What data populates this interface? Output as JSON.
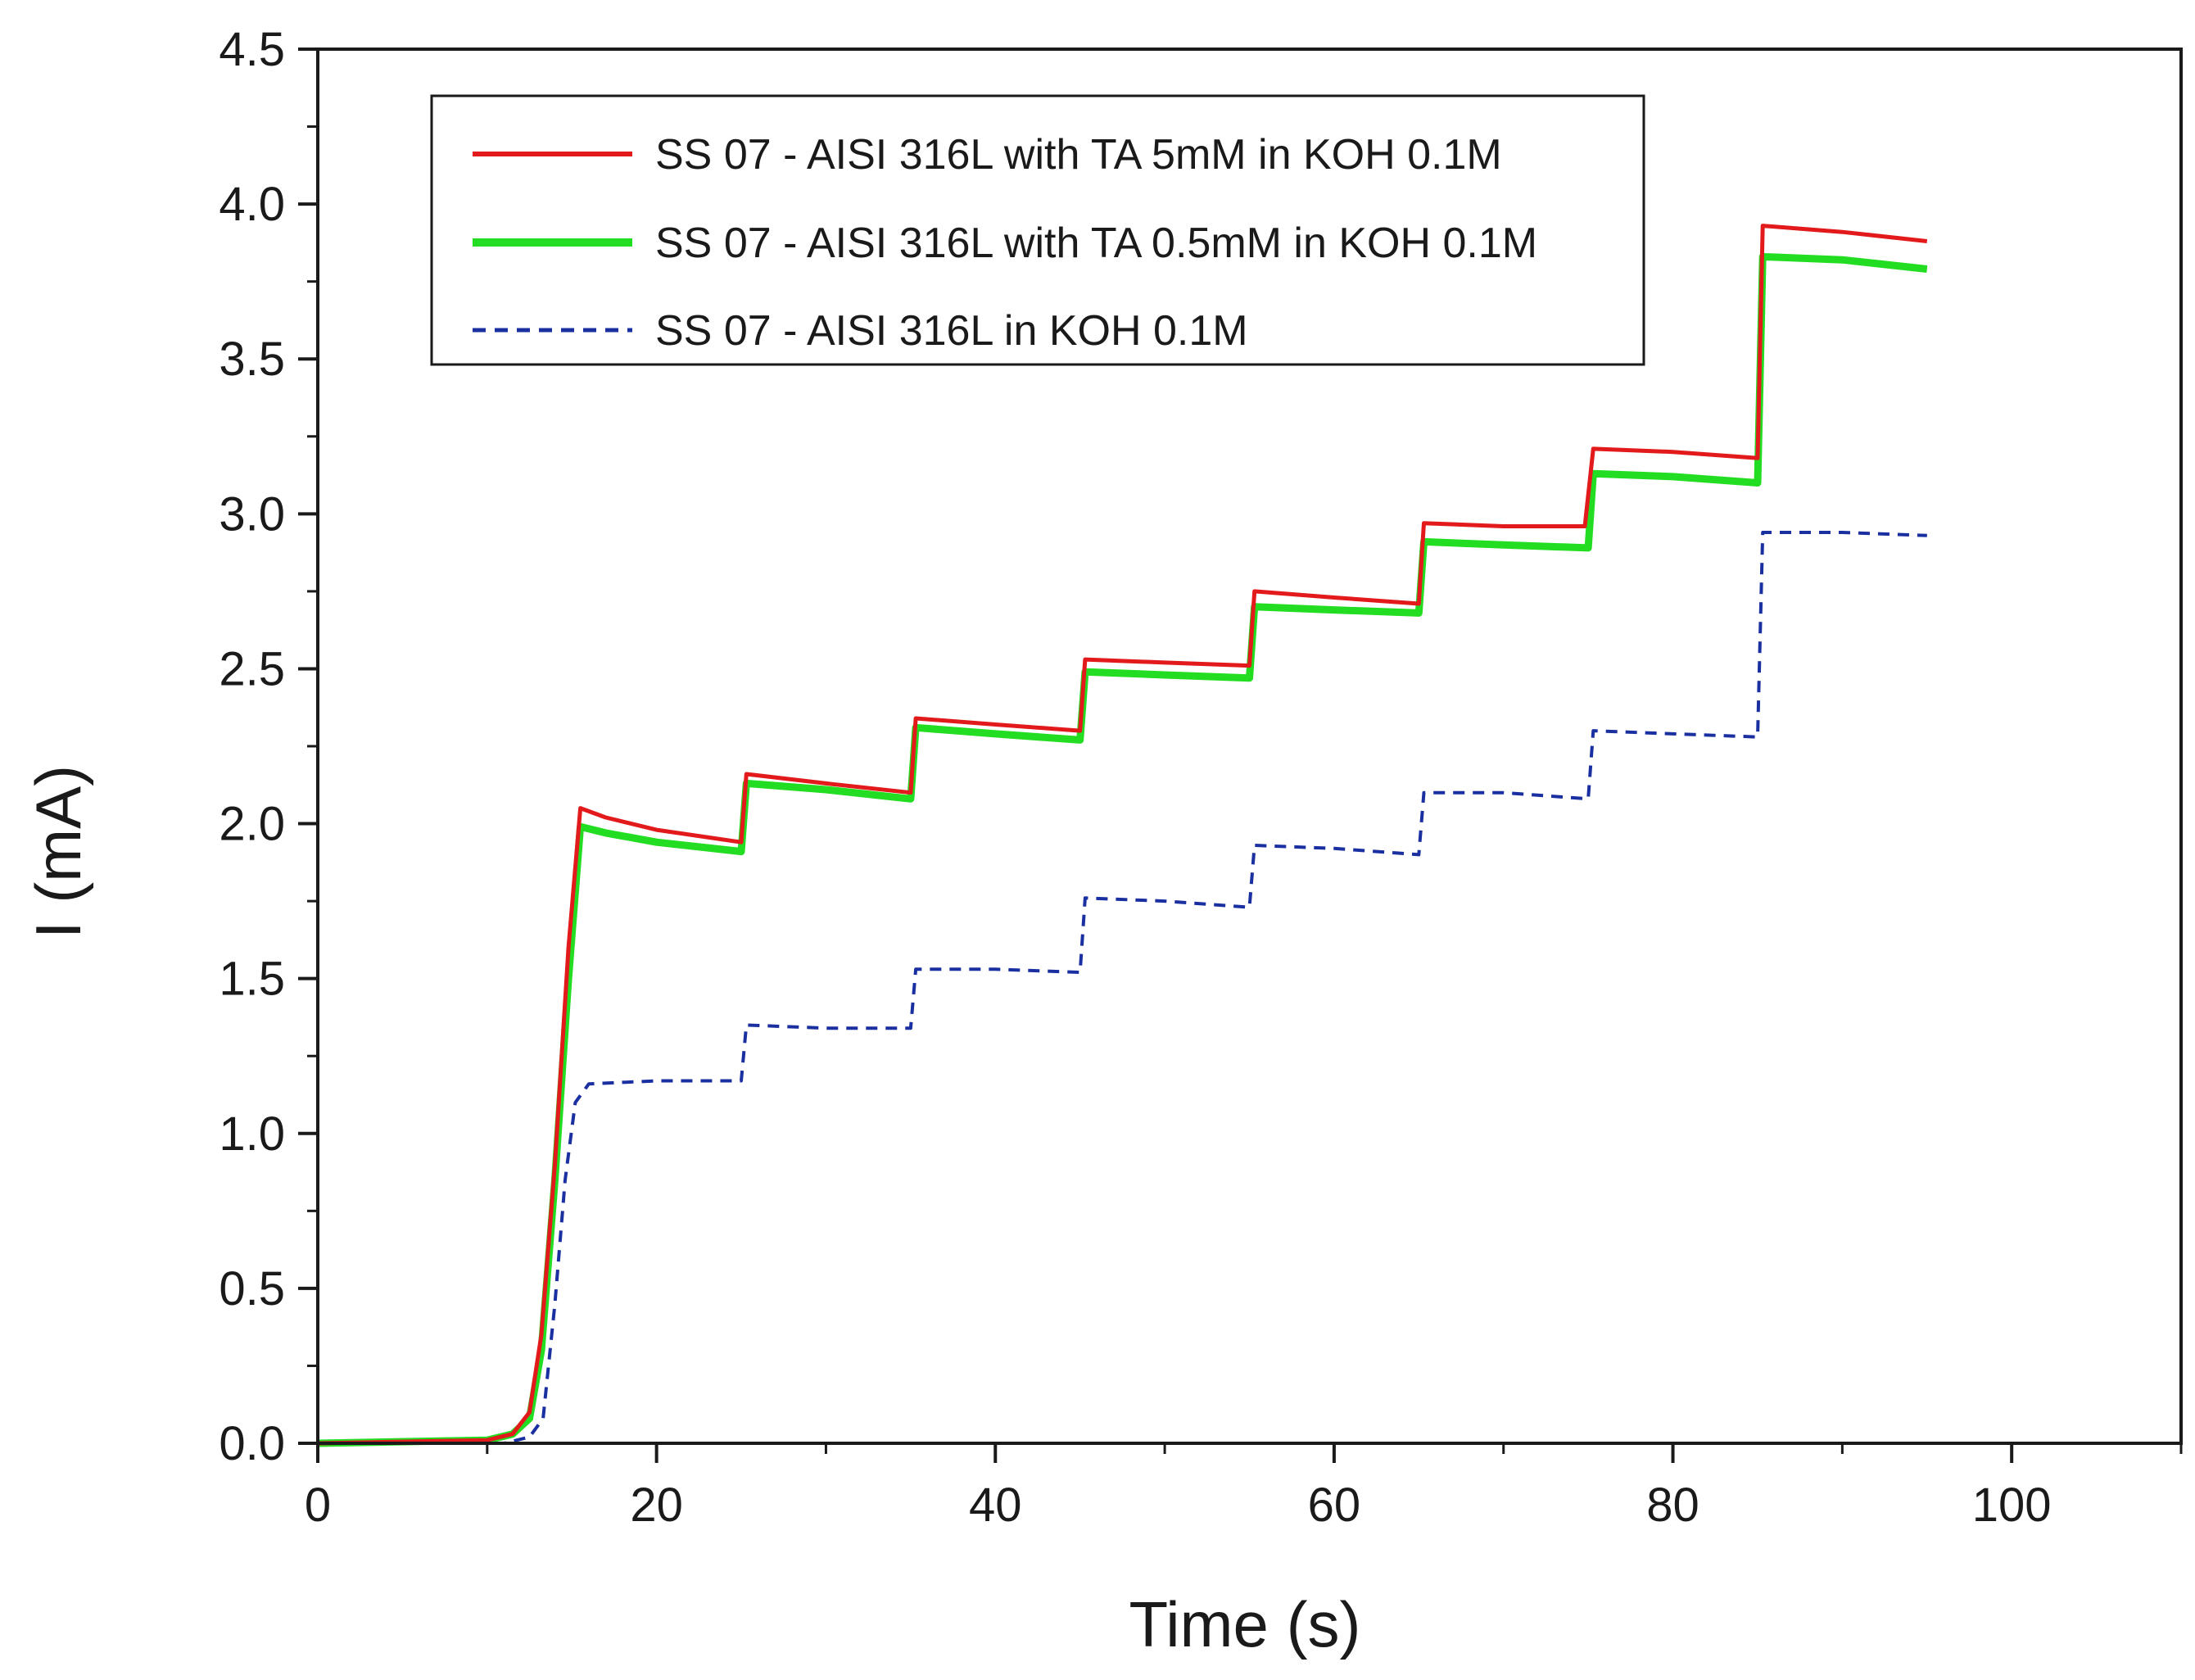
{
  "chart_data": {
    "type": "line",
    "title": "",
    "xlabel": "Time (s)",
    "ylabel": "I (mA)",
    "xlim": [
      0,
      110
    ],
    "ylim": [
      0,
      4.5
    ],
    "x_ticks": [
      0,
      20,
      40,
      60,
      80,
      100
    ],
    "x_tick_labels": [
      "0",
      "20",
      "40",
      "60",
      "80",
      "100"
    ],
    "y_ticks": [
      0,
      0.5,
      1,
      1.5,
      2,
      2.5,
      3,
      3.5,
      4,
      4.5
    ],
    "y_tick_labels": [
      "0.0",
      "0.5",
      "1.0",
      "1.5",
      "2.0",
      "2.5",
      "3.0",
      "3.5",
      "4.0",
      "4.5"
    ],
    "grid": false,
    "legend_position": "top-left",
    "series": [
      {
        "name": "SS 07 - AISI 316L with TA 5mM in KOH 0.1M",
        "color": "#e31a1c",
        "style": "solid",
        "x": [
          0,
          10,
          11.5,
          12.5,
          13.2,
          14,
          14.8,
          15.5,
          17,
          20,
          25,
          25.3,
          30,
          35,
          35.3,
          40,
          45,
          45.3,
          50,
          55,
          55.3,
          60,
          65,
          65.3,
          70,
          74.8,
          75.3,
          80,
          85,
          85.3,
          90,
          95
        ],
        "y": [
          0,
          0.01,
          0.03,
          0.1,
          0.35,
          0.9,
          1.6,
          2.05,
          2.02,
          1.98,
          1.94,
          2.16,
          2.13,
          2.1,
          2.34,
          2.32,
          2.3,
          2.53,
          2.52,
          2.51,
          2.75,
          2.73,
          2.71,
          2.97,
          2.96,
          2.96,
          3.21,
          3.2,
          3.18,
          3.93,
          3.91,
          3.88
        ]
      },
      {
        "name": "SS 07 - AISI 316L with TA 0.5mM in KOH 0.1M",
        "color": "#22dd22",
        "style": "solid",
        "x": [
          0,
          10,
          11.5,
          12.5,
          13.2,
          14,
          14.8,
          15.5,
          17,
          20,
          25,
          25.3,
          30,
          35,
          35.3,
          40,
          45,
          45.3,
          50,
          55,
          55.3,
          60,
          65,
          65.3,
          70,
          75,
          75.3,
          80,
          85,
          85.3,
          90,
          95
        ],
        "y": [
          0,
          0.01,
          0.03,
          0.08,
          0.3,
          0.85,
          1.5,
          1.99,
          1.97,
          1.94,
          1.91,
          2.13,
          2.11,
          2.08,
          2.31,
          2.29,
          2.27,
          2.49,
          2.48,
          2.47,
          2.7,
          2.69,
          2.68,
          2.91,
          2.9,
          2.89,
          3.13,
          3.12,
          3.1,
          3.83,
          3.82,
          3.79
        ]
      },
      {
        "name": "SS 07 - AISI 316L in KOH 0.1M",
        "color": "#1a2fa0",
        "style": "dashed",
        "x": [
          0,
          11,
          12.5,
          13.3,
          14,
          14.6,
          15.2,
          16,
          20,
          25,
          25.3,
          30,
          35,
          35.3,
          40,
          45,
          45.3,
          50,
          55,
          55.3,
          60,
          65,
          65.3,
          70,
          75,
          75.3,
          80,
          85,
          85.3,
          90,
          95
        ],
        "y": [
          0,
          0,
          0.02,
          0.08,
          0.45,
          0.85,
          1.1,
          1.16,
          1.17,
          1.17,
          1.35,
          1.34,
          1.34,
          1.53,
          1.53,
          1.52,
          1.76,
          1.75,
          1.73,
          1.93,
          1.92,
          1.9,
          2.1,
          2.1,
          2.08,
          2.3,
          2.29,
          2.28,
          2.94,
          2.94,
          2.93
        ]
      }
    ]
  }
}
